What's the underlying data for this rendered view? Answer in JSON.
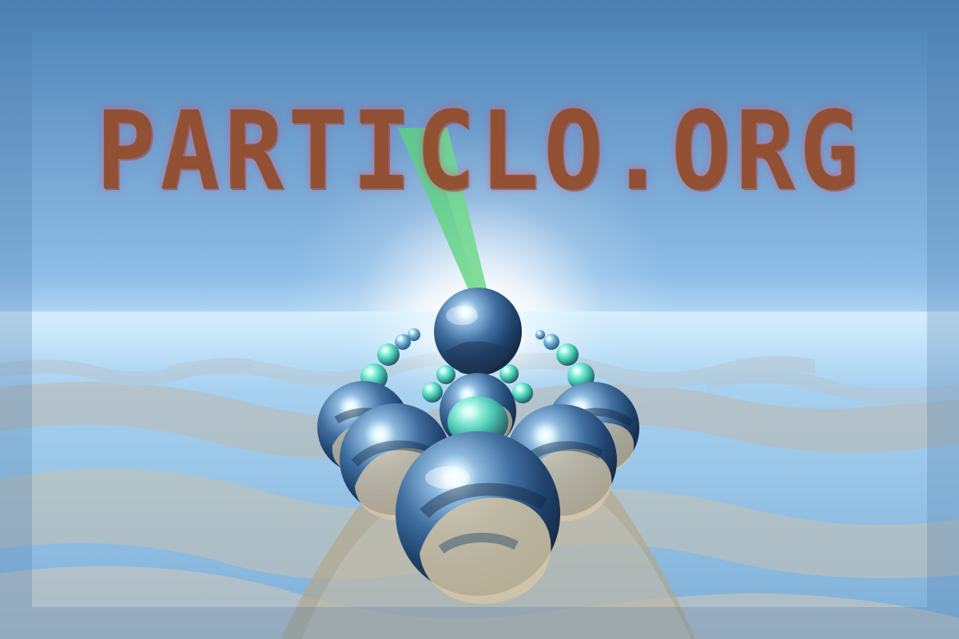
{
  "title": "PARTICLO.ORG",
  "icons": {
    "sphere": "reflective-sphere",
    "beam": "green-beam"
  },
  "colors": {
    "sky_top": "#4b82b7",
    "sky_mid": "#8dbce6",
    "horizon": "#dff4ff",
    "floor_blue": "#84b1d6",
    "floor_tan": "#c8bfae",
    "sphere_blue": "#2f5f95",
    "sphere_teal": "#4bc5b0",
    "beam_green": "#5ed47d",
    "title_brown": "#884a2c",
    "title_glow": "#b95aa5"
  }
}
